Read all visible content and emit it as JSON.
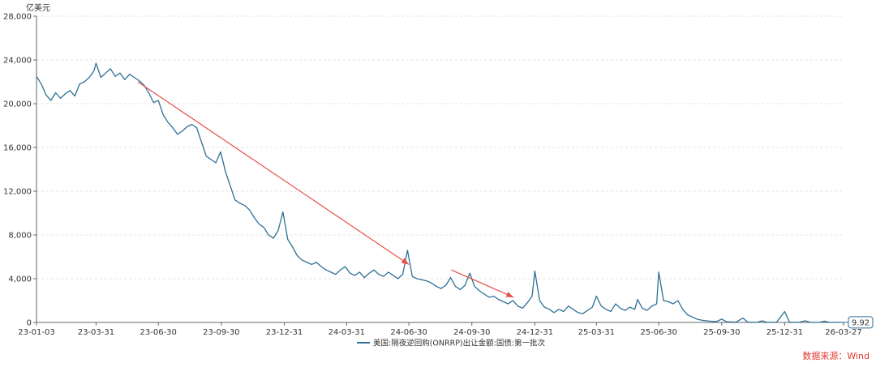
{
  "chart_data": {
    "type": "line",
    "unit_label": "亿美元",
    "title": "",
    "xlabel": "",
    "ylabel": "",
    "ylim": [
      0,
      28000
    ],
    "yticks": [
      0,
      4000,
      8000,
      12000,
      16000,
      20000,
      24000,
      28000
    ],
    "ytick_labels": [
      "0",
      "4,000",
      "8,000",
      "12,000",
      "16,000",
      "20,000",
      "24,000",
      "28,000"
    ],
    "xlim": [
      "2023-01-03",
      "2026-03-27"
    ],
    "xticks": [
      "2023-01-03",
      "2023-03-31",
      "2023-06-30",
      "2023-09-30",
      "2023-12-31",
      "2024-03-31",
      "2024-06-30",
      "2024-09-30",
      "2024-12-31",
      "2025-03-31",
      "2025-06-30",
      "2025-09-30",
      "2025-12-31",
      "2026-03-27"
    ],
    "xtick_labels": [
      "23-01-03",
      "23-03-31",
      "23-06-30",
      "23-09-30",
      "23-12-31",
      "24-03-31",
      "24-06-30",
      "24-09-30",
      "24-12-31",
      "25-03-31",
      "25-06-30",
      "25-09-30",
      "25-12-31",
      "26-03-27"
    ],
    "grid": "horizontal-dashed",
    "legend_position": "bottom-center",
    "series": [
      {
        "name": "美国:隔夜逆回购(ONRRP)出让金额:国债:第一批次",
        "color": "#2e6f96",
        "points": [
          [
            "2023-01-03",
            22500
          ],
          [
            "2023-01-10",
            21800
          ],
          [
            "2023-01-17",
            20800
          ],
          [
            "2023-01-24",
            20300
          ],
          [
            "2023-01-31",
            21000
          ],
          [
            "2023-02-07",
            20500
          ],
          [
            "2023-02-14",
            20900
          ],
          [
            "2023-02-21",
            21200
          ],
          [
            "2023-02-28",
            20700
          ],
          [
            "2023-03-07",
            21800
          ],
          [
            "2023-03-14",
            22000
          ],
          [
            "2023-03-21",
            22400
          ],
          [
            "2023-03-28",
            23000
          ],
          [
            "2023-03-31",
            23700
          ],
          [
            "2023-04-07",
            22400
          ],
          [
            "2023-04-14",
            22800
          ],
          [
            "2023-04-21",
            23200
          ],
          [
            "2023-04-28",
            22500
          ],
          [
            "2023-05-05",
            22800
          ],
          [
            "2023-05-12",
            22200
          ],
          [
            "2023-05-19",
            22700
          ],
          [
            "2023-05-26",
            22400
          ],
          [
            "2023-06-02",
            22100
          ],
          [
            "2023-06-09",
            21700
          ],
          [
            "2023-06-16",
            21000
          ],
          [
            "2023-06-23",
            20100
          ],
          [
            "2023-06-30",
            20300
          ],
          [
            "2023-07-07",
            19000
          ],
          [
            "2023-07-14",
            18300
          ],
          [
            "2023-07-21",
            17800
          ],
          [
            "2023-07-28",
            17200
          ],
          [
            "2023-08-04",
            17500
          ],
          [
            "2023-08-11",
            17900
          ],
          [
            "2023-08-18",
            18100
          ],
          [
            "2023-08-25",
            17800
          ],
          [
            "2023-09-01",
            16500
          ],
          [
            "2023-09-08",
            15200
          ],
          [
            "2023-09-15",
            14900
          ],
          [
            "2023-09-22",
            14600
          ],
          [
            "2023-09-29",
            15600
          ],
          [
            "2023-10-06",
            13800
          ],
          [
            "2023-10-13",
            12500
          ],
          [
            "2023-10-20",
            11200
          ],
          [
            "2023-10-27",
            10900
          ],
          [
            "2023-11-03",
            10700
          ],
          [
            "2023-11-10",
            10300
          ],
          [
            "2023-11-17",
            9600
          ],
          [
            "2023-11-24",
            9000
          ],
          [
            "2023-12-01",
            8700
          ],
          [
            "2023-12-08",
            8000
          ],
          [
            "2023-12-15",
            7700
          ],
          [
            "2023-12-22",
            8400
          ],
          [
            "2023-12-29",
            10100
          ],
          [
            "2024-01-05",
            7600
          ],
          [
            "2024-01-12",
            6900
          ],
          [
            "2024-01-19",
            6100
          ],
          [
            "2024-01-26",
            5700
          ],
          [
            "2024-02-02",
            5500
          ],
          [
            "2024-02-09",
            5300
          ],
          [
            "2024-02-16",
            5500
          ],
          [
            "2024-02-23",
            5100
          ],
          [
            "2024-03-01",
            4800
          ],
          [
            "2024-03-08",
            4600
          ],
          [
            "2024-03-15",
            4400
          ],
          [
            "2024-03-22",
            4800
          ],
          [
            "2024-03-29",
            5100
          ],
          [
            "2024-04-05",
            4500
          ],
          [
            "2024-04-12",
            4300
          ],
          [
            "2024-04-19",
            4600
          ],
          [
            "2024-04-26",
            4100
          ],
          [
            "2024-05-03",
            4500
          ],
          [
            "2024-05-10",
            4800
          ],
          [
            "2024-05-17",
            4400
          ],
          [
            "2024-05-24",
            4200
          ],
          [
            "2024-05-31",
            4600
          ],
          [
            "2024-06-07",
            4300
          ],
          [
            "2024-06-14",
            4000
          ],
          [
            "2024-06-21",
            4400
          ],
          [
            "2024-06-28",
            6600
          ],
          [
            "2024-07-05",
            4200
          ],
          [
            "2024-07-12",
            4000
          ],
          [
            "2024-07-19",
            3900
          ],
          [
            "2024-07-26",
            3800
          ],
          [
            "2024-08-02",
            3600
          ],
          [
            "2024-08-09",
            3300
          ],
          [
            "2024-08-16",
            3100
          ],
          [
            "2024-08-23",
            3400
          ],
          [
            "2024-08-30",
            4100
          ],
          [
            "2024-09-06",
            3300
          ],
          [
            "2024-09-13",
            3000
          ],
          [
            "2024-09-20",
            3400
          ],
          [
            "2024-09-27",
            4500
          ],
          [
            "2024-10-04",
            3300
          ],
          [
            "2024-10-11",
            2900
          ],
          [
            "2024-10-18",
            2600
          ],
          [
            "2024-10-25",
            2300
          ],
          [
            "2024-11-01",
            2400
          ],
          [
            "2024-11-08",
            2100
          ],
          [
            "2024-11-15",
            1900
          ],
          [
            "2024-11-22",
            1700
          ],
          [
            "2024-11-29",
            2000
          ],
          [
            "2024-12-06",
            1500
          ],
          [
            "2024-12-13",
            1300
          ],
          [
            "2024-12-20",
            1800
          ],
          [
            "2024-12-27",
            2400
          ],
          [
            "2024-12-31",
            4700
          ],
          [
            "2025-01-07",
            2000
          ],
          [
            "2025-01-14",
            1400
          ],
          [
            "2025-01-21",
            1200
          ],
          [
            "2025-01-28",
            900
          ],
          [
            "2025-02-04",
            1200
          ],
          [
            "2025-02-11",
            1000
          ],
          [
            "2025-02-18",
            1500
          ],
          [
            "2025-02-25",
            1200
          ],
          [
            "2025-03-04",
            900
          ],
          [
            "2025-03-11",
            800
          ],
          [
            "2025-03-18",
            1100
          ],
          [
            "2025-03-25",
            1400
          ],
          [
            "2025-03-31",
            2400
          ],
          [
            "2025-04-07",
            1500
          ],
          [
            "2025-04-14",
            1200
          ],
          [
            "2025-04-21",
            1000
          ],
          [
            "2025-04-28",
            1700
          ],
          [
            "2025-05-05",
            1300
          ],
          [
            "2025-05-12",
            1100
          ],
          [
            "2025-05-19",
            1400
          ],
          [
            "2025-05-26",
            1200
          ],
          [
            "2025-05-30",
            2100
          ],
          [
            "2025-06-06",
            1300
          ],
          [
            "2025-06-13",
            1100
          ],
          [
            "2025-06-20",
            1500
          ],
          [
            "2025-06-27",
            1700
          ],
          [
            "2025-06-30",
            4600
          ],
          [
            "2025-07-07",
            2000
          ],
          [
            "2025-07-14",
            1900
          ],
          [
            "2025-07-21",
            1700
          ],
          [
            "2025-07-28",
            2000
          ],
          [
            "2025-08-04",
            1200
          ],
          [
            "2025-08-11",
            700
          ],
          [
            "2025-08-18",
            500
          ],
          [
            "2025-08-25",
            300
          ],
          [
            "2025-09-01",
            200
          ],
          [
            "2025-09-08",
            150
          ],
          [
            "2025-09-15",
            100
          ],
          [
            "2025-09-22",
            80
          ],
          [
            "2025-09-30",
            300
          ],
          [
            "2025-10-07",
            60
          ],
          [
            "2025-10-14",
            40
          ],
          [
            "2025-10-21",
            30
          ],
          [
            "2025-10-31",
            400
          ],
          [
            "2025-11-07",
            30
          ],
          [
            "2025-11-14",
            20
          ],
          [
            "2025-11-21",
            10
          ],
          [
            "2025-11-28",
            150
          ],
          [
            "2025-12-05",
            20
          ],
          [
            "2025-12-12",
            15
          ],
          [
            "2025-12-19",
            10
          ],
          [
            "2025-12-31",
            1000
          ],
          [
            "2026-01-07",
            30
          ],
          [
            "2026-01-14",
            15
          ],
          [
            "2026-01-21",
            10
          ],
          [
            "2026-01-30",
            150
          ],
          [
            "2026-02-06",
            15
          ],
          [
            "2026-02-13",
            10
          ],
          [
            "2026-02-20",
            8
          ],
          [
            "2026-02-27",
            120
          ],
          [
            "2026-03-06",
            10
          ],
          [
            "2026-03-13",
            8
          ],
          [
            "2026-03-20",
            12
          ],
          [
            "2026-03-27",
            9.92
          ]
        ]
      }
    ],
    "last_value_label": "9.92",
    "trend_arrows": [
      {
        "from": [
          "2023-05-31",
          22000
        ],
        "to": [
          "2024-06-30",
          5300
        ]
      },
      {
        "from": [
          "2024-08-31",
          4800
        ],
        "to": [
          "2024-11-30",
          2300
        ]
      }
    ],
    "annotation_color": "#e8504a",
    "source_text": "数据来源：Wind",
    "source_color": "#e0392f"
  }
}
